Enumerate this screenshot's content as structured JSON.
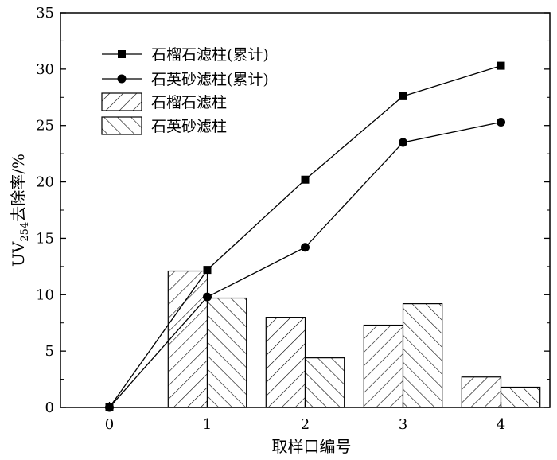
{
  "chart_data": {
    "type": "bar",
    "xlabel": "取样口编号",
    "ylabel_main": "UV",
    "ylabel_sub": "254",
    "ylabel_rest": "去除率/%",
    "x_ticks": [
      "0",
      "1",
      "2",
      "3",
      "4"
    ],
    "y_ticks": [
      "0",
      "5",
      "10",
      "15",
      "20",
      "25",
      "30",
      "35"
    ],
    "ylim": [
      0,
      35
    ],
    "xlim": [
      -0.5,
      4.5
    ],
    "grid": false,
    "legend_position": "top-left",
    "bar_series": [
      {
        "name": "石榴石滤柱",
        "pattern": "diagonal-up",
        "x": [
          1,
          2,
          3,
          4
        ],
        "values": [
          12.1,
          8.0,
          7.3,
          2.7
        ]
      },
      {
        "name": "石英砂滤柱",
        "pattern": "diagonal-down",
        "x": [
          1,
          2,
          3,
          4
        ],
        "values": [
          9.7,
          4.4,
          9.2,
          1.8
        ]
      }
    ],
    "line_series": [
      {
        "name": "石榴石滤柱(累计)",
        "marker": "square",
        "x": [
          0,
          1,
          2,
          3,
          4
        ],
        "values": [
          0,
          12.2,
          20.2,
          27.6,
          30.3
        ]
      },
      {
        "name": "石英砂滤柱(累计)",
        "marker": "circle",
        "x": [
          0,
          1,
          2,
          3,
          4
        ],
        "values": [
          0,
          9.8,
          14.2,
          23.5,
          25.3
        ]
      }
    ]
  }
}
